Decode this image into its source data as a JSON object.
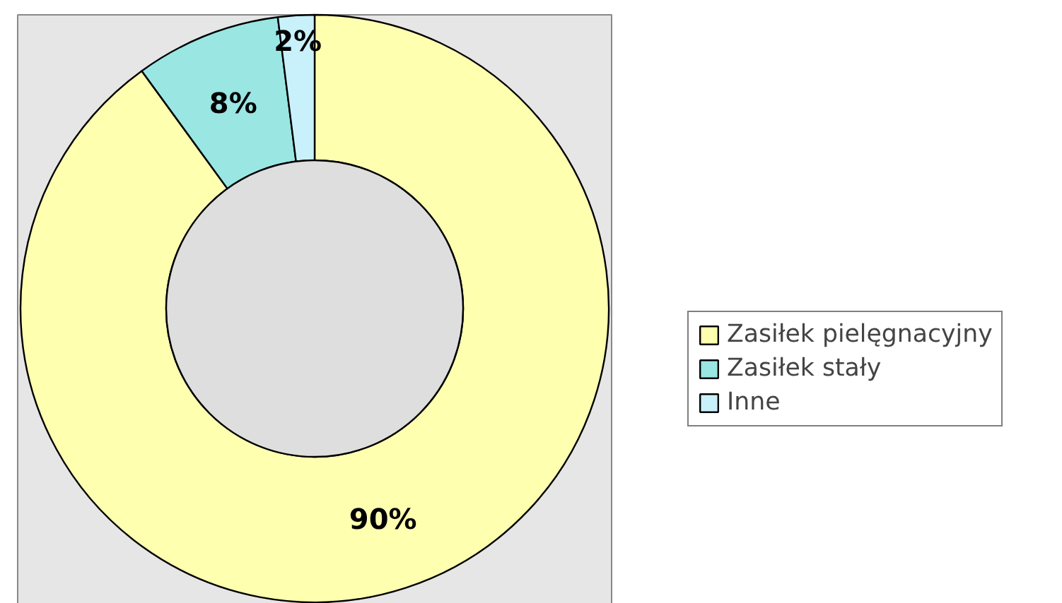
{
  "chart_data": {
    "type": "donut",
    "categories": [
      "Zasiłek pielęgnacyjny",
      "Zasiłek stały",
      "Inne"
    ],
    "values": [
      90,
      8,
      2
    ],
    "colors": [
      "#ffffb0",
      "#99e6e3",
      "#c9f1fb"
    ],
    "value_labels": [
      "90%",
      "8%",
      "2%"
    ],
    "legend": "right"
  }
}
